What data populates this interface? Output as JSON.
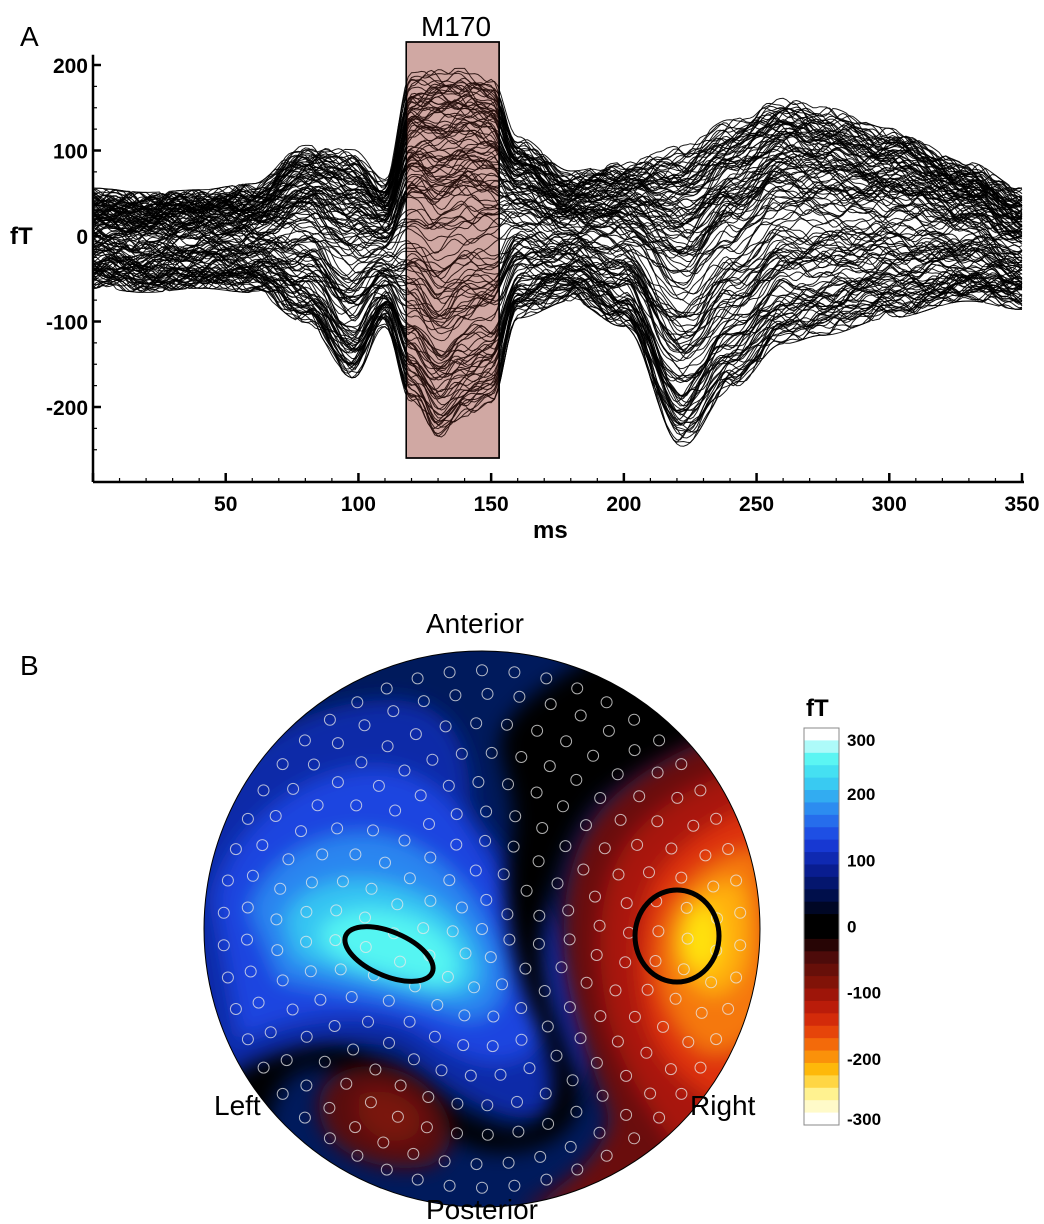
{
  "chart_data": [
    {
      "panel": "A",
      "type": "line",
      "xlabel": "ms",
      "ylabel": "fT",
      "xlim": [
        0,
        350
      ],
      "ylim": [
        -260,
        205
      ],
      "x_ticks": [
        50,
        100,
        150,
        200,
        250,
        300,
        350
      ],
      "y_ticks": [
        200,
        100,
        0,
        -100,
        -200
      ],
      "highlight": {
        "label": "M170",
        "x_range": [
          118,
          153
        ],
        "color": "#f2d9d6"
      },
      "envelope": {
        "time_ms": [
          0,
          20,
          40,
          60,
          80,
          98,
          110,
          120,
          130,
          140,
          150,
          160,
          180,
          200,
          222,
          240,
          260,
          275,
          300,
          330,
          350
        ],
        "upper_fT": [
          50,
          45,
          48,
          55,
          100,
          95,
          60,
          185,
          190,
          190,
          180,
          110,
          70,
          80,
          100,
          130,
          155,
          145,
          120,
          80,
          50
        ],
        "lower_fT": [
          -55,
          -60,
          -55,
          -60,
          -95,
          -160,
          -100,
          -190,
          -230,
          -205,
          -190,
          -90,
          -70,
          -100,
          -240,
          -175,
          -120,
          -110,
          -90,
          -70,
          -80
        ]
      }
    },
    {
      "panel": "B",
      "type": "heatmap",
      "colorbar_title": "fT",
      "colorbar_ticks": [
        300,
        200,
        100,
        0,
        -100,
        -200,
        -300
      ],
      "colorbar_range": [
        -300,
        300
      ],
      "orientation_labels": {
        "top": "Anterior",
        "bottom": "Posterior",
        "left": "Left",
        "right": "Right"
      },
      "positive_scale": [
        "#000000",
        "#001050",
        "#0a1f9a",
        "#1a3ee0",
        "#2a7ef0",
        "#36c3f2",
        "#4ff4f2",
        "#ffffff"
      ],
      "negative_scale": [
        "#000000",
        "#4a0a0a",
        "#7a1208",
        "#b0160a",
        "#e0320a",
        "#f8780a",
        "#ffc20a",
        "#fff59a",
        "#ffffff"
      ]
    }
  ],
  "panel_labels": {
    "a": "A",
    "b": "B"
  }
}
